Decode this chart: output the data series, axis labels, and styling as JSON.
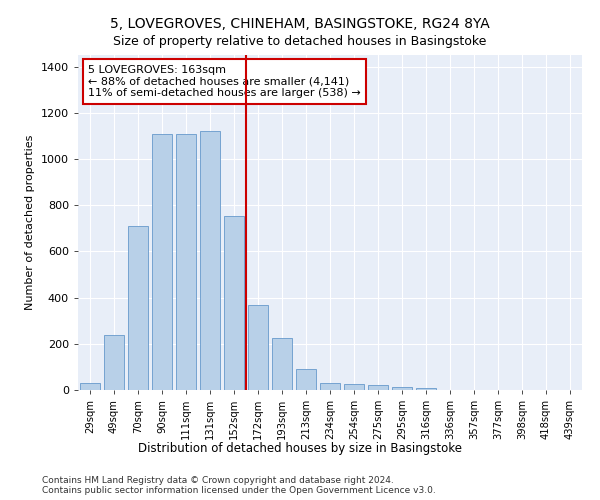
{
  "title1": "5, LOVEGROVES, CHINEHAM, BASINGSTOKE, RG24 8YA",
  "title2": "Size of property relative to detached houses in Basingstoke",
  "xlabel": "Distribution of detached houses by size in Basingstoke",
  "ylabel": "Number of detached properties",
  "categories": [
    "29sqm",
    "49sqm",
    "70sqm",
    "90sqm",
    "111sqm",
    "131sqm",
    "152sqm",
    "172sqm",
    "193sqm",
    "213sqm",
    "234sqm",
    "254sqm",
    "275sqm",
    "295sqm",
    "316sqm",
    "336sqm",
    "357sqm",
    "377sqm",
    "398sqm",
    "418sqm",
    "439sqm"
  ],
  "values": [
    30,
    240,
    710,
    1110,
    1110,
    1120,
    755,
    370,
    225,
    90,
    32,
    25,
    20,
    15,
    10,
    0,
    0,
    0,
    0,
    0,
    0
  ],
  "bar_color": "#b8d0e8",
  "bar_edge_color": "#6699cc",
  "vline_x": 7,
  "vline_color": "#cc0000",
  "annotation_text": "5 LOVEGROVES: 163sqm\n← 88% of detached houses are smaller (4,141)\n11% of semi-detached houses are larger (538) →",
  "annotation_box_color": "#ffffff",
  "annotation_box_edge_color": "#cc0000",
  "ylim": [
    0,
    1450
  ],
  "yticks": [
    0,
    200,
    400,
    600,
    800,
    1000,
    1200,
    1400
  ],
  "footnote1": "Contains HM Land Registry data © Crown copyright and database right 2024.",
  "footnote2": "Contains public sector information licensed under the Open Government Licence v3.0.",
  "plot_bg_color": "#e8eef8",
  "title1_fontsize": 10,
  "title2_fontsize": 9,
  "annotation_fontsize": 8,
  "footnote_fontsize": 6.5,
  "ylabel_fontsize": 8,
  "xlabel_fontsize": 8.5
}
